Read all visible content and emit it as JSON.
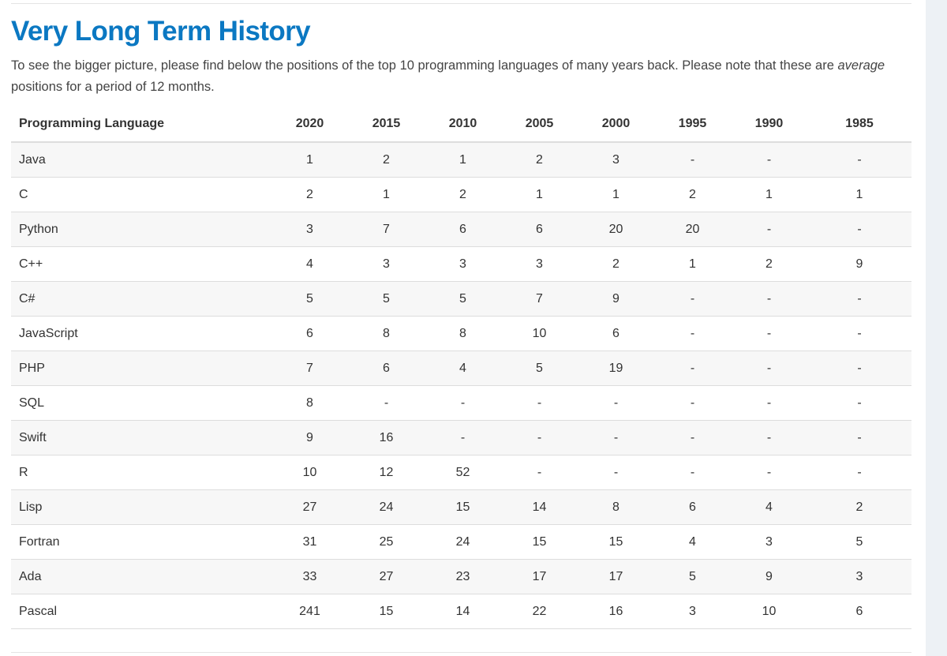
{
  "title": "Very Long Term History",
  "intro": {
    "before": "To see the bigger picture, please find below the positions of the top 10 programming languages of many years back. Please note that these are ",
    "emphasis": "average",
    "after": " positions for a period of 12 months."
  },
  "table": {
    "headers": [
      "Programming Language",
      "2020",
      "2015",
      "2010",
      "2005",
      "2000",
      "1995",
      "1990",
      "1985"
    ],
    "rows": [
      [
        "Java",
        "1",
        "2",
        "1",
        "2",
        "3",
        "-",
        "-",
        "-"
      ],
      [
        "C",
        "2",
        "1",
        "2",
        "1",
        "1",
        "2",
        "1",
        "1"
      ],
      [
        "Python",
        "3",
        "7",
        "6",
        "6",
        "20",
        "20",
        "-",
        "-"
      ],
      [
        "C++",
        "4",
        "3",
        "3",
        "3",
        "2",
        "1",
        "2",
        "9"
      ],
      [
        "C#",
        "5",
        "5",
        "5",
        "7",
        "9",
        "-",
        "-",
        "-"
      ],
      [
        "JavaScript",
        "6",
        "8",
        "8",
        "10",
        "6",
        "-",
        "-",
        "-"
      ],
      [
        "PHP",
        "7",
        "6",
        "4",
        "5",
        "19",
        "-",
        "-",
        "-"
      ],
      [
        "SQL",
        "8",
        "-",
        "-",
        "-",
        "-",
        "-",
        "-",
        "-"
      ],
      [
        "Swift",
        "9",
        "16",
        "-",
        "-",
        "-",
        "-",
        "-",
        "-"
      ],
      [
        "R",
        "10",
        "12",
        "52",
        "-",
        "-",
        "-",
        "-",
        "-"
      ],
      [
        "Lisp",
        "27",
        "24",
        "15",
        "14",
        "8",
        "6",
        "4",
        "2"
      ],
      [
        "Fortran",
        "31",
        "25",
        "24",
        "15",
        "15",
        "4",
        "3",
        "5"
      ],
      [
        "Ada",
        "33",
        "27",
        "23",
        "17",
        "17",
        "5",
        "9",
        "3"
      ],
      [
        "Pascal",
        "241",
        "15",
        "14",
        "22",
        "16",
        "3",
        "10",
        "6"
      ]
    ]
  }
}
